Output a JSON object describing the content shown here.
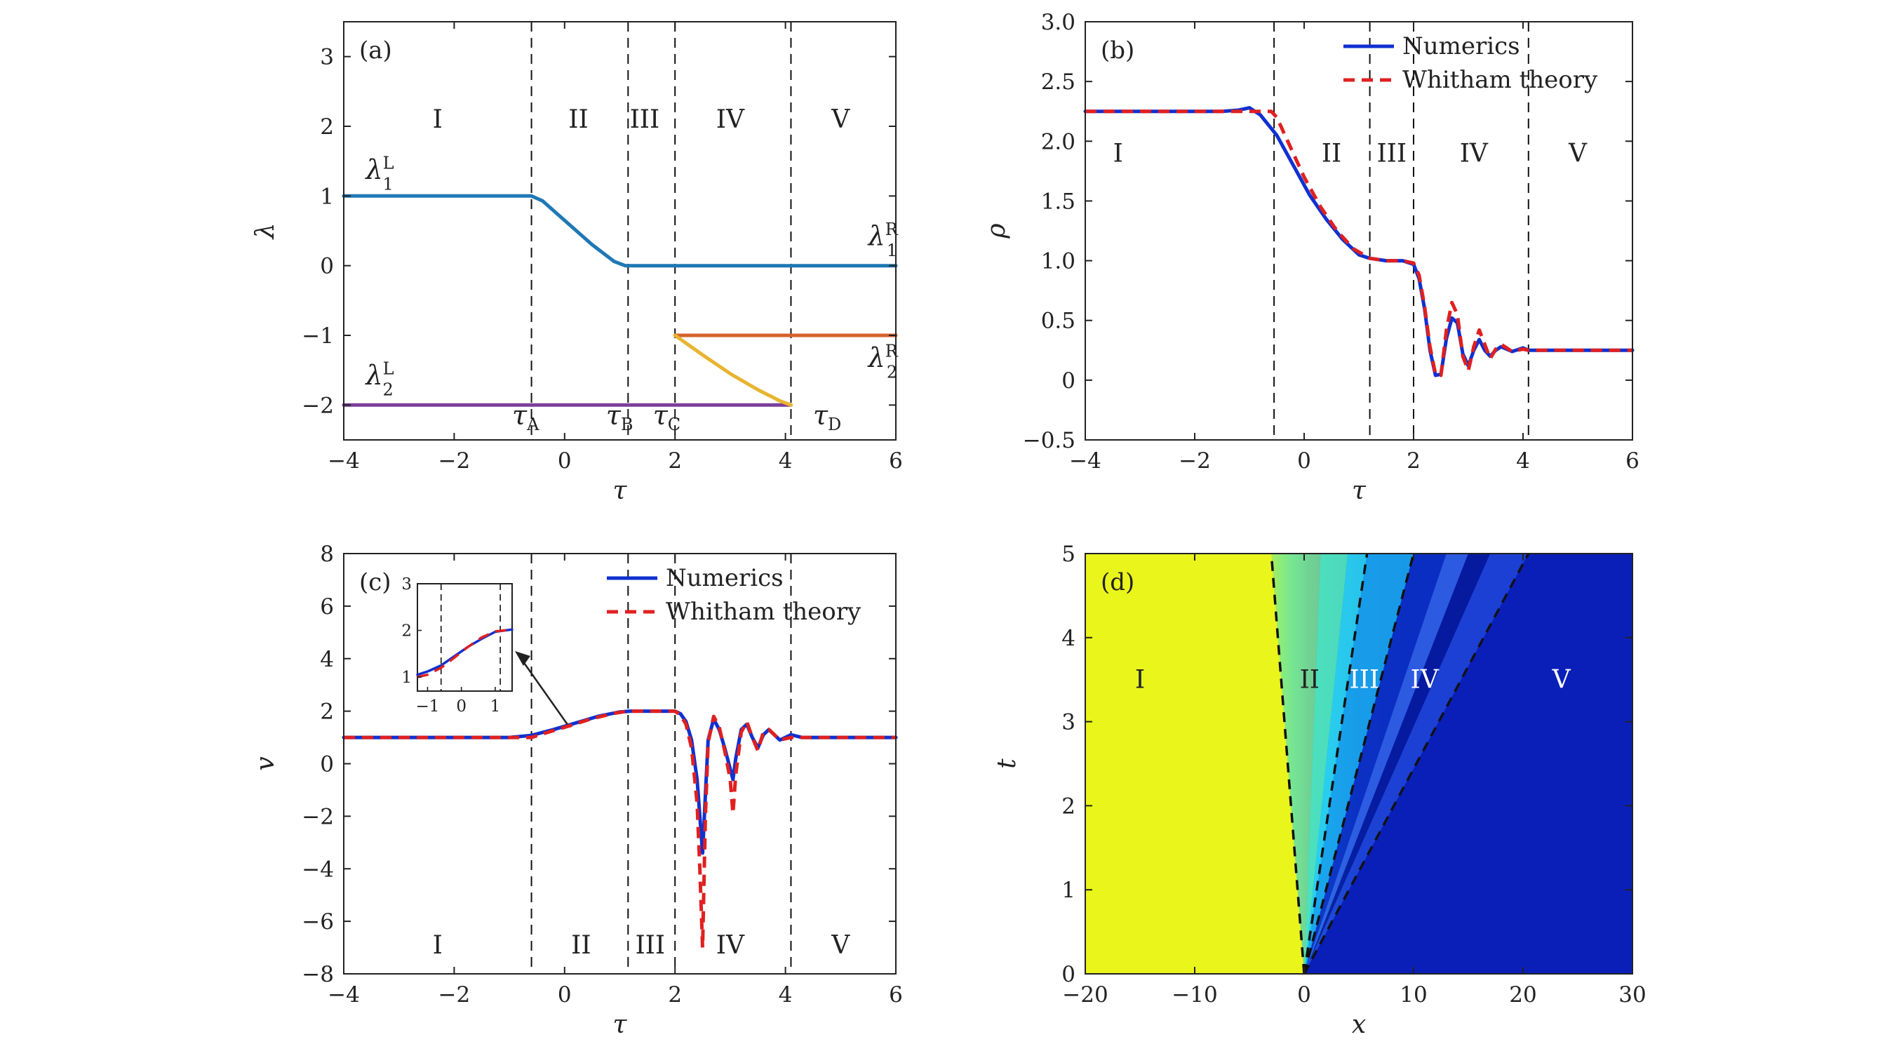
{
  "colors": {
    "axis": "#222222",
    "dashed": "#111111",
    "lambda_blue": "#1f78b4",
    "lambda_orange": "#d6622a",
    "lambda_yellow": "#e8b430",
    "lambda_purple": "#7b3e9a",
    "numerics": "#1030d0",
    "whitham": "#e02020",
    "yellow_region": "#eaf51c",
    "dark_blue_region": "#0a1fb8"
  },
  "chart_data": [
    {
      "panel_label": "(a)",
      "type": "line",
      "xlabel": "τ",
      "ylabel": "λ",
      "xlim": [
        -4,
        6
      ],
      "ylim": [
        -2.5,
        3.5
      ],
      "xticks": [
        -4,
        -2,
        0,
        2,
        4,
        6
      ],
      "xtick_labels": [
        "−4",
        "−2",
        "0",
        "2",
        "4",
        "6"
      ],
      "yticks": [
        -2,
        -1,
        0,
        1,
        2,
        3
      ],
      "ytick_labels": [
        "−2",
        "−1",
        "0",
        "1",
        "2",
        "3"
      ],
      "dashed_lines": [
        -0.6,
        1.15,
        2.0,
        4.1
      ],
      "regions": [
        {
          "label": "I",
          "x": -2.3,
          "y": 2.1
        },
        {
          "label": "II",
          "x": 0.25,
          "y": 2.1
        },
        {
          "label": "III",
          "x": 1.45,
          "y": 2.1
        },
        {
          "label": "IV",
          "x": 3.0,
          "y": 2.1
        },
        {
          "label": "V",
          "x": 5.0,
          "y": 2.1
        }
      ],
      "annotations": [
        {
          "text": "λ",
          "sup": "L",
          "sub": "1",
          "x": -3.6,
          "y": 1.25
        },
        {
          "text": "λ",
          "sup": "R",
          "sub": "1",
          "x": 5.5,
          "y": 0.3
        },
        {
          "text": "λ",
          "sup": "L",
          "sub": "2",
          "x": -3.6,
          "y": -1.7
        },
        {
          "text": "λ",
          "sup": "R",
          "sub": "2",
          "x": 5.5,
          "y": -1.45
        },
        {
          "text": "τ",
          "sub": "A",
          "x": -0.95,
          "y": -2.28
        },
        {
          "text": "τ",
          "sub": "B",
          "x": 0.75,
          "y": -2.28
        },
        {
          "text": "τ",
          "sub": "C",
          "x": 1.6,
          "y": -2.28
        },
        {
          "text": "τ",
          "sub": "D",
          "x": 4.5,
          "y": -2.28
        }
      ],
      "series": [
        {
          "color": "#1f78b4",
          "x": [
            -4,
            -0.6,
            -0.4,
            0,
            0.5,
            0.9,
            1.1,
            1.3,
            6
          ],
          "y": [
            1,
            1,
            0.93,
            0.65,
            0.3,
            0.06,
            0,
            0,
            0
          ]
        },
        {
          "color": "#7b3e9a",
          "x": [
            -4,
            4.1
          ],
          "y": [
            -2,
            -2
          ]
        },
        {
          "color": "#d6622a",
          "x": [
            2.0,
            6
          ],
          "y": [
            -1,
            -1
          ]
        },
        {
          "color": "#e8b430",
          "x": [
            2.0,
            2.5,
            3.0,
            3.5,
            3.9,
            4.1
          ],
          "y": [
            -1,
            -1.28,
            -1.55,
            -1.78,
            -1.94,
            -2
          ]
        }
      ]
    },
    {
      "panel_label": "(b)",
      "type": "line",
      "xlabel": "τ",
      "ylabel": "ρ",
      "xlim": [
        -4,
        6
      ],
      "ylim": [
        -0.5,
        3.0
      ],
      "xticks": [
        -4,
        -2,
        0,
        2,
        4,
        6
      ],
      "xtick_labels": [
        "−4",
        "−2",
        "0",
        "2",
        "4",
        "6"
      ],
      "yticks": [
        -0.5,
        0,
        0.5,
        1.0,
        1.5,
        2.0,
        2.5,
        3.0
      ],
      "ytick_labels": [
        "−0.5",
        "0",
        "0.5",
        "1.0",
        "1.5",
        "2.0",
        "2.5",
        "3.0"
      ],
      "dashed_lines": [
        -0.55,
        1.2,
        2.0,
        4.1
      ],
      "regions": [
        {
          "label": "I",
          "x": -3.4,
          "y": 1.9
        },
        {
          "label": "II",
          "x": 0.5,
          "y": 1.9
        },
        {
          "label": "III",
          "x": 1.6,
          "y": 1.9
        },
        {
          "label": "IV",
          "x": 3.1,
          "y": 1.9
        },
        {
          "label": "V",
          "x": 5.0,
          "y": 1.9
        }
      ],
      "legend": [
        "Numerics",
        "Whitham theory"
      ],
      "legend_position": "top-right",
      "series": [
        {
          "name": "Numerics",
          "color": "#1030d0",
          "dash": false,
          "x": [
            -4,
            -1.5,
            -1.2,
            -1.0,
            -0.8,
            -0.5,
            -0.2,
            0.1,
            0.4,
            0.7,
            1.0,
            1.2,
            1.5,
            1.8,
            2.0,
            2.1,
            2.2,
            2.3,
            2.4,
            2.5,
            2.6,
            2.7,
            2.8,
            2.9,
            3.0,
            3.1,
            3.2,
            3.3,
            3.4,
            3.5,
            3.6,
            3.8,
            4.0,
            4.1,
            4.3,
            6
          ],
          "y": [
            2.25,
            2.25,
            2.26,
            2.28,
            2.22,
            2.05,
            1.8,
            1.55,
            1.35,
            1.18,
            1.05,
            1.02,
            1.0,
            1.0,
            0.97,
            0.85,
            0.6,
            0.25,
            0.04,
            0.05,
            0.35,
            0.52,
            0.48,
            0.22,
            0.12,
            0.25,
            0.34,
            0.25,
            0.2,
            0.25,
            0.28,
            0.24,
            0.27,
            0.25,
            0.25,
            0.25
          ]
        },
        {
          "name": "Whitham theory",
          "color": "#e02020",
          "dash": true,
          "x": [
            -4,
            -0.6,
            -0.5,
            -0.3,
            0,
            0.3,
            0.6,
            0.9,
            1.2,
            1.5,
            1.8,
            2.0,
            2.1,
            2.2,
            2.3,
            2.4,
            2.5,
            2.6,
            2.7,
            2.8,
            2.9,
            3.0,
            3.1,
            3.2,
            3.3,
            3.4,
            3.5,
            3.6,
            3.8,
            4.0,
            4.1,
            6
          ],
          "y": [
            2.25,
            2.25,
            2.2,
            2.0,
            1.7,
            1.45,
            1.25,
            1.1,
            1.02,
            1.0,
            1.0,
            0.98,
            0.88,
            0.62,
            0.28,
            0.05,
            0.04,
            0.42,
            0.65,
            0.55,
            0.2,
            0.08,
            0.28,
            0.42,
            0.3,
            0.18,
            0.26,
            0.3,
            0.24,
            0.26,
            0.25,
            0.25
          ]
        }
      ]
    },
    {
      "panel_label": "(c)",
      "type": "line",
      "xlabel": "τ",
      "ylabel": "v",
      "xlim": [
        -4,
        6
      ],
      "ylim": [
        -8,
        8
      ],
      "xticks": [
        -4,
        -2,
        0,
        2,
        4,
        6
      ],
      "xtick_labels": [
        "−4",
        "−2",
        "0",
        "2",
        "4",
        "6"
      ],
      "yticks": [
        -8,
        -6,
        -4,
        -2,
        0,
        2,
        4,
        6,
        8
      ],
      "ytick_labels": [
        "−8",
        "−6",
        "−4",
        "−2",
        "0",
        "2",
        "4",
        "6",
        "8"
      ],
      "dashed_lines": [
        -0.6,
        1.15,
        2.0,
        4.1
      ],
      "regions": [
        {
          "label": "I",
          "x": -2.3,
          "y": -6.9
        },
        {
          "label": "II",
          "x": 0.3,
          "y": -6.9
        },
        {
          "label": "III",
          "x": 1.55,
          "y": -6.9
        },
        {
          "label": "IV",
          "x": 3.0,
          "y": -6.9
        },
        {
          "label": "V",
          "x": 5.0,
          "y": -6.9
        }
      ],
      "legend": [
        "Numerics",
        "Whitham theory"
      ],
      "legend_position": "top-right",
      "series": [
        {
          "name": "Numerics",
          "color": "#1030d0",
          "dash": false,
          "x": [
            -4,
            -1.0,
            -0.6,
            -0.2,
            0.2,
            0.6,
            1.0,
            1.2,
            1.6,
            2.0,
            2.1,
            2.2,
            2.3,
            2.4,
            2.45,
            2.5,
            2.55,
            2.6,
            2.7,
            2.8,
            2.9,
            3.0,
            3.05,
            3.1,
            3.2,
            3.3,
            3.4,
            3.5,
            3.6,
            3.7,
            3.9,
            4.1,
            4.3,
            6
          ],
          "y": [
            1,
            1,
            1.08,
            1.3,
            1.55,
            1.8,
            1.97,
            2.0,
            2.0,
            2.0,
            1.9,
            1.6,
            0.9,
            -0.6,
            -2.0,
            -3.4,
            -1.2,
            0.9,
            1.7,
            1.3,
            0.6,
            -0.2,
            -0.6,
            0.2,
            1.3,
            1.5,
            1.0,
            0.6,
            1.1,
            1.3,
            0.9,
            1.1,
            1.0,
            1.0
          ]
        },
        {
          "name": "Whitham theory",
          "color": "#e02020",
          "dash": true,
          "x": [
            -4,
            -0.6,
            -0.3,
            0.1,
            0.5,
            0.9,
            1.15,
            1.6,
            2.0,
            2.1,
            2.2,
            2.3,
            2.4,
            2.45,
            2.5,
            2.55,
            2.6,
            2.7,
            2.8,
            2.9,
            3.0,
            3.05,
            3.1,
            3.2,
            3.3,
            3.4,
            3.5,
            3.6,
            3.7,
            3.9,
            4.1,
            6
          ],
          "y": [
            1,
            1,
            1.2,
            1.45,
            1.72,
            1.92,
            2.0,
            2.0,
            2.0,
            1.85,
            1.5,
            0.6,
            -1.5,
            -4.0,
            -7.0,
            -2.0,
            0.8,
            1.8,
            1.4,
            0.5,
            -0.6,
            -1.9,
            -0.4,
            1.2,
            1.6,
            1.0,
            0.5,
            1.2,
            1.3,
            0.9,
            1.0,
            1.0
          ]
        }
      ],
      "inset": {
        "xlim": [
          -1.3,
          1.5
        ],
        "ylim": [
          0.7,
          3
        ],
        "xticks": [
          -1,
          0,
          1
        ],
        "xtick_labels": [
          "−1",
          "0",
          "1"
        ],
        "yticks": [
          1,
          2,
          3
        ],
        "ytick_labels": [
          "1",
          "2",
          "3"
        ],
        "dashed_lines": [
          -0.6,
          1.15
        ],
        "series": [
          {
            "color": "#1030d0",
            "dash": false,
            "x": [
              -1.3,
              -1.0,
              -0.6,
              -0.2,
              0.2,
              0.6,
              1.0,
              1.5
            ],
            "y": [
              1.05,
              1.12,
              1.25,
              1.45,
              1.65,
              1.82,
              1.97,
              2.02
            ]
          },
          {
            "color": "#e02020",
            "dash": true,
            "x": [
              -1.3,
              -1.0,
              -0.6,
              -0.2,
              0.2,
              0.6,
              1.0,
              1.5
            ],
            "y": [
              1.0,
              1.05,
              1.2,
              1.42,
              1.65,
              1.85,
              1.98,
              2.02
            ]
          }
        ]
      }
    },
    {
      "panel_label": "(d)",
      "type": "heatmap",
      "xlabel": "x",
      "ylabel": "t",
      "xlim": [
        -20,
        30
      ],
      "ylim": [
        0,
        5
      ],
      "xticks": [
        -20,
        -10,
        0,
        10,
        20,
        30
      ],
      "xtick_labels": [
        "−20",
        "−10",
        "0",
        "10",
        "20",
        "30"
      ],
      "yticks": [
        0,
        1,
        2,
        3,
        4,
        5
      ],
      "ytick_labels": [
        "0",
        "1",
        "2",
        "3",
        "4",
        "5"
      ],
      "dashed_slopes": [
        -0.6,
        1.15,
        2.0,
        4.1
      ],
      "regions": [
        {
          "label": "I",
          "x": -15,
          "y": 3.5,
          "color": "#222222"
        },
        {
          "label": "II",
          "x": 0.5,
          "y": 3.5,
          "color": "#222222"
        },
        {
          "label": "III",
          "x": 5.5,
          "y": 3.5,
          "color": "#ffffff"
        },
        {
          "label": "IV",
          "x": 11.0,
          "y": 3.5,
          "color": "#ffffff"
        },
        {
          "label": "V",
          "x": 23.5,
          "y": 3.5,
          "color": "#ffffff"
        }
      ]
    }
  ]
}
